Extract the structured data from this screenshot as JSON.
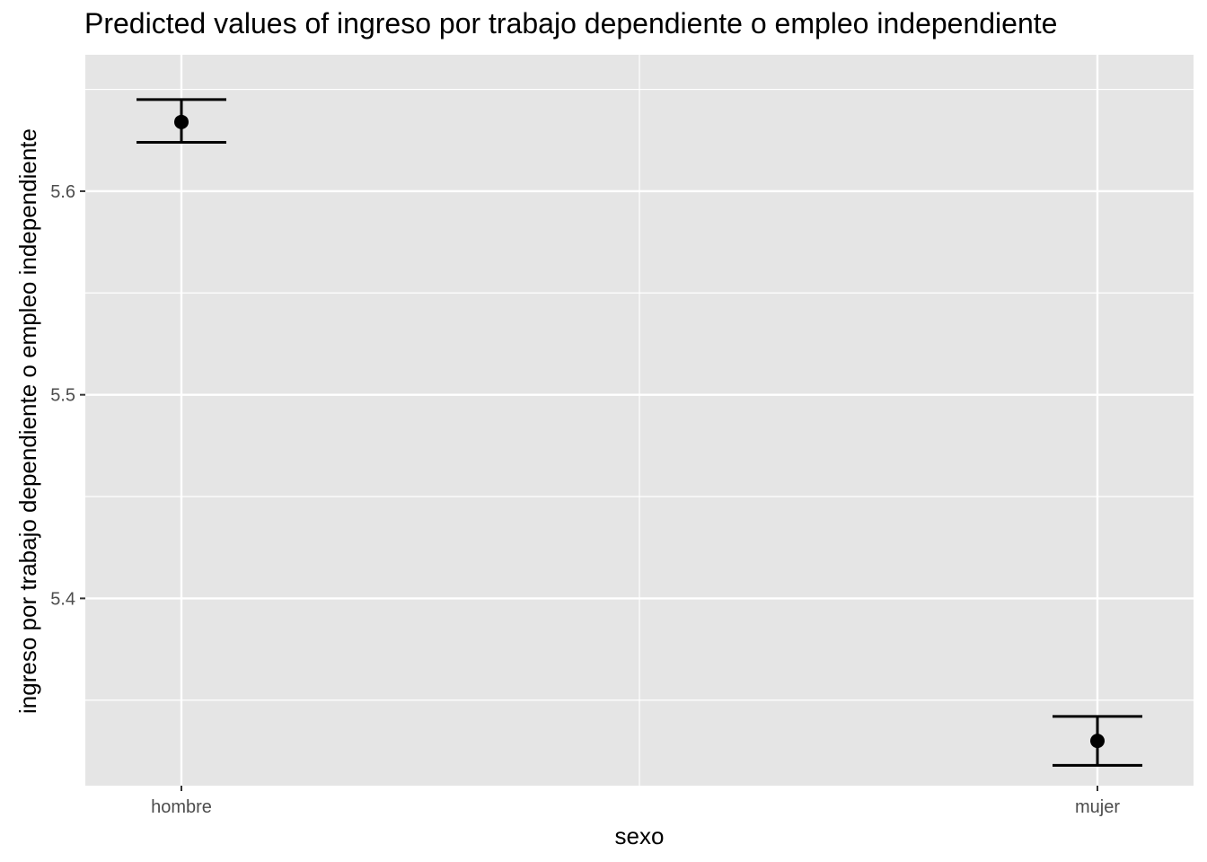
{
  "chart_data": {
    "type": "scatter",
    "title": "Predicted values of ingreso por trabajo dependiente o empleo independiente",
    "xlabel": "sexo",
    "ylabel": "ingreso por trabajo dependiente o empleo independiente",
    "categories": [
      "hombre",
      "mujer"
    ],
    "series": [
      {
        "values": [
          5.634,
          5.33
        ],
        "ci_low": [
          5.624,
          5.318
        ],
        "ci_high": [
          5.645,
          5.342
        ]
      }
    ],
    "y_ticks": [
      "5.4",
      "5.5",
      "5.6"
    ],
    "ylim": [
      5.308,
      5.667
    ],
    "grid": true,
    "colors": {
      "panel": "#e5e5e5",
      "grid": "#ffffff",
      "marks": "#000000"
    }
  }
}
